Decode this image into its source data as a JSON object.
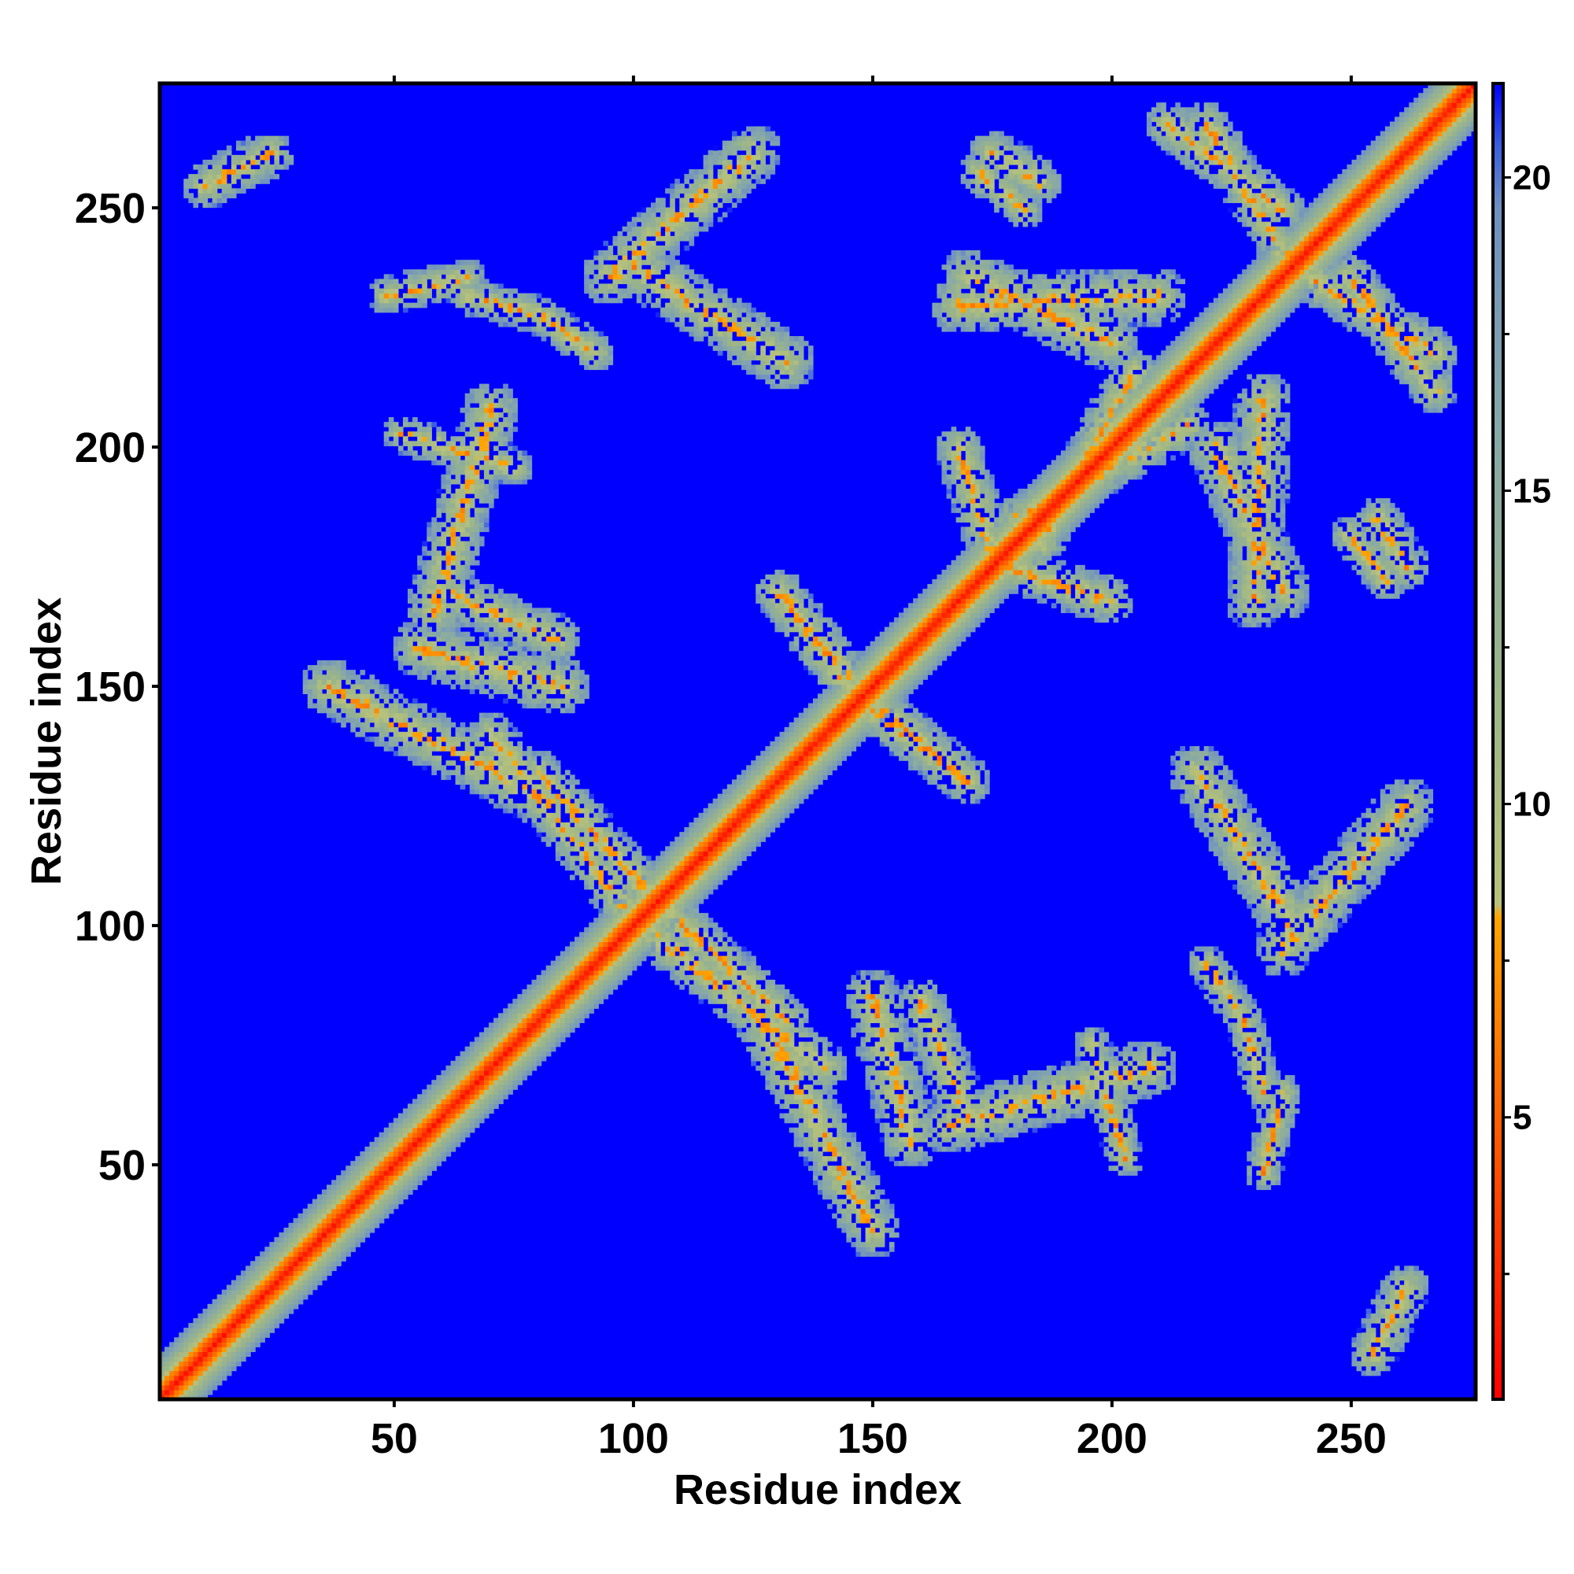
{
  "chart_data": {
    "type": "heatmap",
    "title": "",
    "xlabel": "Residue index",
    "ylabel": "Residue index",
    "xlim": [
      1,
      276
    ],
    "ylim": [
      1,
      276
    ],
    "x_ticks": [
      50,
      100,
      150,
      200,
      250
    ],
    "y_ticks": [
      50,
      100,
      150,
      200,
      250
    ],
    "colorbar": {
      "range": [
        0.5,
        21.5
      ],
      "ticks": [
        5,
        10,
        15,
        20
      ],
      "stops": [
        {
          "value": 0.5,
          "color": "#ff0000"
        },
        {
          "value": 5,
          "color": "#ff6000"
        },
        {
          "value": 8.2,
          "color": "#ffa500"
        },
        {
          "value": 8.4,
          "color": "#b8c27a"
        },
        {
          "value": 12,
          "color": "#9ab48a"
        },
        {
          "value": 16,
          "color": "#86a8a8"
        },
        {
          "value": 19.5,
          "color": "#7090c0"
        },
        {
          "value": 20.5,
          "color": "#3a5fe0"
        },
        {
          "value": 21.5,
          "color": "#0000ff"
        }
      ]
    },
    "background_value": 21.5,
    "background_color": "#0000ff",
    "diagonal": {
      "band_width": 9
    },
    "contact_segments": [
      {
        "from": [
          10,
          255
        ],
        "to": [
          24,
          262
        ],
        "width": 5
      },
      {
        "from": [
          48,
          232
        ],
        "to": [
          65,
          236
        ],
        "width": 4
      },
      {
        "from": [
          65,
          232
        ],
        "to": [
          80,
          228
        ],
        "width": 4
      },
      {
        "from": [
          80,
          228
        ],
        "to": [
          92,
          220
        ],
        "width": 4
      },
      {
        "from": [
          51,
          203
        ],
        "to": [
          75,
          196
        ],
        "width": 4
      },
      {
        "from": [
          60,
          170
        ],
        "to": [
          84,
          160
        ],
        "width": 5
      },
      {
        "from": [
          36,
          150
        ],
        "to": [
          82,
          126
        ],
        "width": 6
      },
      {
        "from": [
          80,
          132
        ],
        "to": [
          102,
          108
        ],
        "width": 5
      },
      {
        "from": [
          104,
          98
        ],
        "to": [
          140,
          70
        ],
        "width": 5
      },
      {
        "from": [
          132,
          72
        ],
        "to": [
          145,
          45
        ],
        "width": 6
      },
      {
        "from": [
          150,
          85
        ],
        "to": [
          158,
          55
        ],
        "width": 6
      },
      {
        "from": [
          166,
          58
        ],
        "to": [
          208,
          70
        ],
        "width": 6
      },
      {
        "from": [
          130,
          170
        ],
        "to": [
          145,
          150
        ],
        "width": 5
      },
      {
        "from": [
          152,
          145
        ],
        "to": [
          170,
          130
        ],
        "width": 5
      },
      {
        "from": [
          168,
          200
        ],
        "to": [
          176,
          175
        ],
        "width": 5
      },
      {
        "from": [
          168,
          230
        ],
        "to": [
          210,
          232
        ],
        "width": 6
      },
      {
        "from": [
          175,
          262
        ],
        "to": [
          185,
          256
        ],
        "width": 5
      },
      {
        "from": [
          212,
          268
        ],
        "to": [
          236,
          250
        ],
        "width": 5
      },
      {
        "from": [
          238,
          238
        ],
        "to": [
          268,
          220
        ],
        "width": 5
      },
      {
        "from": [
          222,
          200
        ],
        "to": [
          236,
          170
        ],
        "width": 6
      },
      {
        "from": [
          250,
          182
        ],
        "to": [
          258,
          172
        ],
        "width": 4
      },
      {
        "from": [
          218,
          132
        ],
        "to": [
          238,
          100
        ],
        "width": 6
      },
      {
        "from": [
          236,
          95
        ],
        "to": [
          262,
          125
        ],
        "width": 6
      },
      {
        "from": [
          180,
          185
        ],
        "to": [
          216,
          205
        ],
        "width": 5
      }
    ]
  }
}
